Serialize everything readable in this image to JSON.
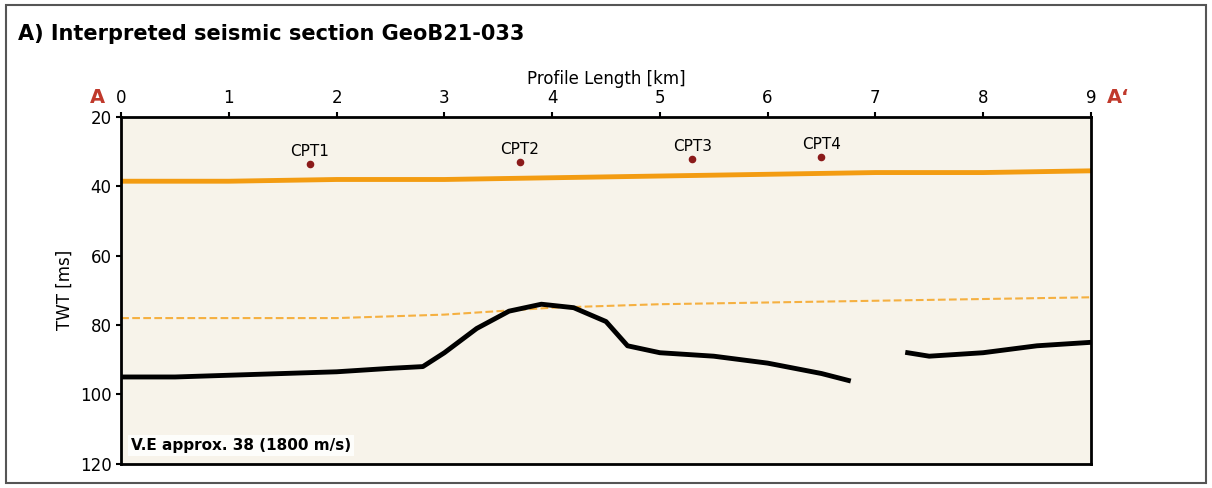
{
  "chart_data": {
    "type": "line",
    "title": "A) Interpreted seismic section GeoB21-033",
    "x_label": "Profile Length [km]",
    "y_label": "TWT [ms]",
    "profile_start_label": "A",
    "profile_end_label": "A‘",
    "annotation": "V.E approx. 38 (1800 m/s)",
    "xlim": [
      0,
      9
    ],
    "ylim": [
      120,
      20
    ],
    "xticks": [
      0,
      1,
      2,
      3,
      4,
      5,
      6,
      7,
      8,
      9
    ],
    "yticks": [
      20,
      40,
      60,
      80,
      100,
      120
    ],
    "points": {
      "labels": [
        "CPT1",
        "CPT2",
        "CPT3",
        "CPT4"
      ],
      "x": [
        1.75,
        3.7,
        5.3,
        6.5
      ],
      "y": [
        33.5,
        33,
        32,
        31.5
      ],
      "color": "#8b1a1a",
      "marker": "o"
    },
    "series": [
      {
        "color": "#f39c12",
        "line_style": "solid",
        "x": [
          0,
          1,
          2,
          3,
          4,
          5,
          6,
          7,
          8,
          9
        ],
        "values": [
          38.5,
          38.5,
          38,
          38,
          37.5,
          37,
          36.5,
          36,
          36,
          35.5
        ]
      },
      {
        "color": "#f5b041",
        "line_style": "dashed",
        "x": [
          0,
          1,
          2,
          3,
          4,
          5,
          6,
          7,
          8,
          9
        ],
        "values": [
          78,
          78,
          78,
          77,
          75,
          74,
          73.5,
          73,
          72.5,
          72
        ]
      },
      {
        "color": "#000000",
        "line_style": "solid",
        "x": [
          0,
          0.5,
          1,
          1.5,
          2,
          2.5,
          2.8,
          3.0,
          3.3,
          3.6,
          3.9,
          4.2,
          4.5,
          4.7,
          5.0,
          5.5,
          6.0,
          6.5,
          6.75,
          6.9,
          7.3,
          7.5,
          8,
          8.5,
          9
        ],
        "values": [
          95,
          95,
          94.5,
          94,
          93.5,
          92.5,
          92,
          88,
          81,
          76,
          74,
          75,
          79,
          86,
          88,
          89,
          91,
          94,
          96,
          null,
          88,
          89,
          88,
          86,
          85
        ]
      }
    ]
  }
}
